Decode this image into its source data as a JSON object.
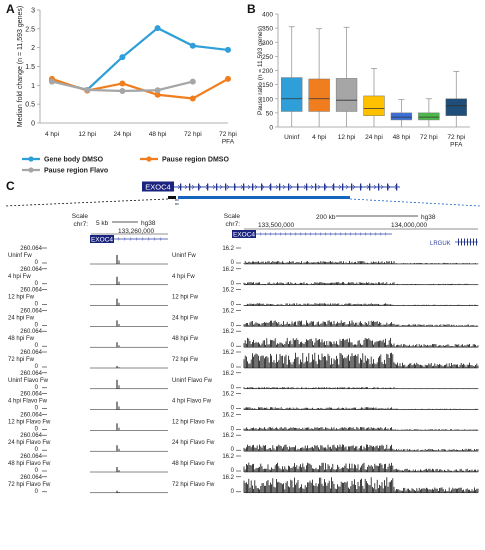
{
  "panels": {
    "a": "A",
    "b": "B",
    "c": "C"
  },
  "chart_data": [
    {
      "type": "line",
      "ylabel": "Median fold change (n = 11,593 genes)",
      "ylim": [
        0,
        3
      ],
      "yticks": [
        "0",
        "0.5",
        "1",
        "1.5",
        "2",
        "2.5",
        "3"
      ],
      "categories": [
        "4 hpi",
        "12 hpi",
        "24 hpi",
        "48 hpi",
        "72 hpi",
        "72 hpi\nPFA"
      ],
      "grid": false,
      "legend_position": "bottom",
      "series": [
        {
          "name": "Gene body DMSO",
          "color": "#2e9fd8",
          "values": [
            1.12,
            0.88,
            1.75,
            2.52,
            2.05,
            1.94
          ]
        },
        {
          "name": "Pause region DMSO",
          "color": "#f07d1e",
          "values": [
            1.17,
            0.86,
            1.05,
            0.75,
            0.65,
            1.17
          ]
        },
        {
          "name": "Pause region Flavo",
          "color": "#a6a6a6",
          "values": [
            1.1,
            0.88,
            0.85,
            0.87,
            1.1,
            null
          ]
        }
      ]
    },
    {
      "type": "box",
      "ylabel": "Pause ratio (n = 11,593 genes)",
      "ylim": [
        0,
        400
      ],
      "yticks": [
        "0",
        "50",
        "100",
        "150",
        "200",
        "250",
        "300",
        "350",
        "400"
      ],
      "categories": [
        "Uninf",
        "4 hpi",
        "12 hpi",
        "24 hpi",
        "48 hpi",
        "72 hpi",
        "72 hpi\nPFA"
      ],
      "boxes": [
        {
          "category": "Uninf",
          "color": "#2e9fd8",
          "min": 0,
          "q1": 55,
          "median": 100,
          "q3": 175,
          "max": 355
        },
        {
          "category": "4 hpi",
          "color": "#f07d1e",
          "min": 0,
          "q1": 55,
          "median": 100,
          "q3": 170,
          "max": 348
        },
        {
          "category": "12 hpi",
          "color": "#a6a6a6",
          "min": 0,
          "q1": 55,
          "median": 95,
          "q3": 172,
          "max": 353
        },
        {
          "category": "24 hpi",
          "color": "#ffc000",
          "min": 0,
          "q1": 40,
          "median": 65,
          "q3": 110,
          "max": 207
        },
        {
          "category": "48 hpi",
          "color": "#3a6fd8",
          "min": 0,
          "q1": 25,
          "median": 35,
          "q3": 50,
          "max": 97
        },
        {
          "category": "72 hpi",
          "color": "#4cb84a",
          "min": 0,
          "q1": 25,
          "median": 35,
          "q3": 50,
          "max": 100
        },
        {
          "category": "72 hpi\nPFA",
          "color": "#1e4e79",
          "min": 0,
          "q1": 40,
          "median": 75,
          "q3": 100,
          "max": 197
        }
      ]
    }
  ],
  "browser": {
    "gene": "EXOC4",
    "left": {
      "scale_label": "Scale",
      "chrom_label": "chr7:",
      "scale_bar": "5 kb",
      "assembly": "hg38",
      "coordinate": "133,260,000",
      "gene_label": "EXOC4",
      "ymax": "260.064",
      "ymin": "0"
    },
    "right": {
      "scale_label": "Scale",
      "chrom_label": "chr7:",
      "scale_bar": "200 kb",
      "assembly": "hg38",
      "coordinates": [
        "133,500,000",
        "134,000,000"
      ],
      "gene_labels": [
        "EXOC4",
        "LRGUK"
      ],
      "ymax": "16.2",
      "ymin": "0",
      "track_heights": [
        0.18,
        0.16,
        0.14,
        0.35,
        0.55,
        0.9,
        0.1,
        0.14,
        0.2,
        0.4,
        0.55,
        0.9
      ]
    },
    "tracks": [
      "Uninf Fw",
      "4 hpi Fw",
      "12 hpi Fw",
      "24 hpi Fw",
      "48 hpi Fw",
      "72 hpi Fw",
      "Uninf Flavo Fw",
      "4 hpi Flavo Fw",
      "12 hpi Flavo Fw",
      "24 hpi Flavo Fw",
      "48 hpi Flavo Fw",
      "72 hpi Flavo Fw"
    ]
  }
}
